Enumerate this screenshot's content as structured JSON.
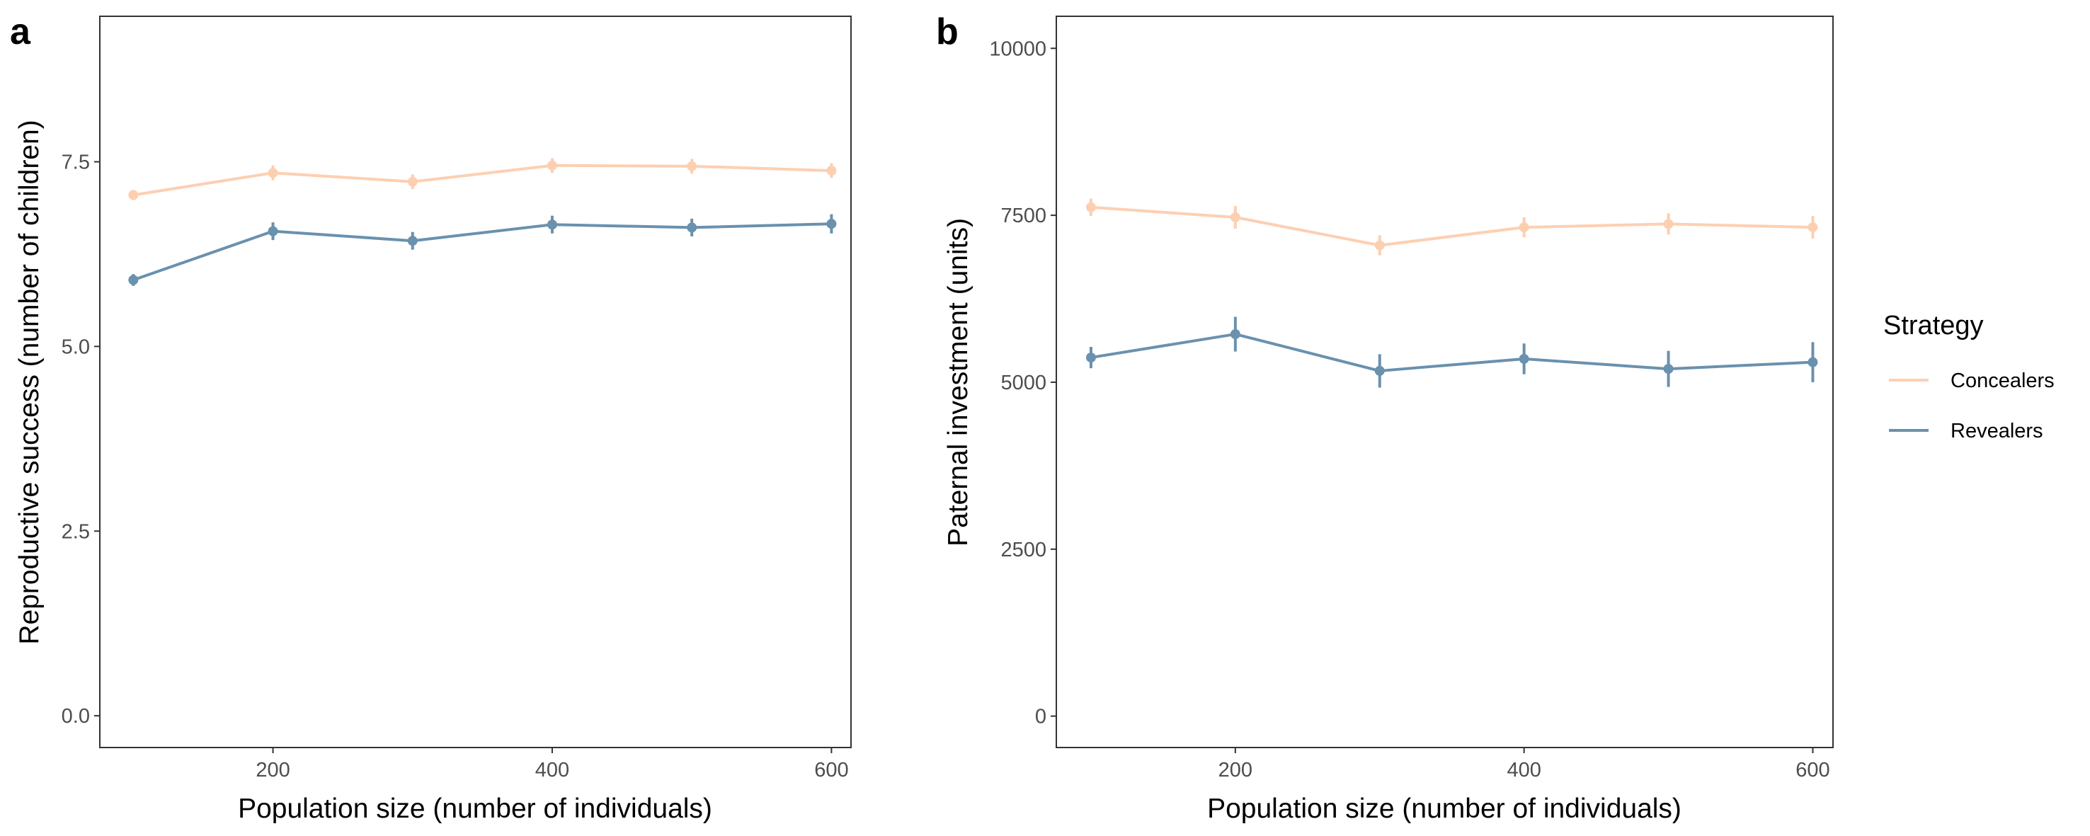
{
  "figure": {
    "legend": {
      "title": "Strategy",
      "items": [
        {
          "label": "Concealers",
          "color": "#FDCFB1"
        },
        {
          "label": "Revealers",
          "color": "#6A91AE"
        }
      ]
    }
  },
  "chart_data": [
    {
      "panel": "a",
      "type": "line",
      "xlabel": "Population size (number of individuals)",
      "ylabel": "Reproductive success (number of children)",
      "xlim": [
        76,
        614
      ],
      "ylim": [
        -0.43,
        9.47
      ],
      "x_ticks": [
        200,
        400,
        600
      ],
      "y_ticks": [
        0.0,
        2.5,
        5.0,
        7.5
      ],
      "y_tick_labels": [
        "0.0",
        "2.5",
        "5.0",
        "7.5"
      ],
      "x": [
        100,
        200,
        300,
        400,
        500,
        600
      ],
      "series": [
        {
          "name": "Concealers",
          "color": "#FDCFB1",
          "values": [
            7.05,
            7.35,
            7.23,
            7.45,
            7.44,
            7.38
          ],
          "errors": [
            0.07,
            0.1,
            0.1,
            0.1,
            0.1,
            0.1
          ]
        },
        {
          "name": "Revealers",
          "color": "#6A91AE",
          "values": [
            5.9,
            6.56,
            6.43,
            6.65,
            6.61,
            6.66
          ],
          "errors": [
            0.08,
            0.12,
            0.12,
            0.12,
            0.12,
            0.13
          ]
        }
      ],
      "legend": "none",
      "grid": false
    },
    {
      "panel": "b",
      "type": "line",
      "xlabel": "Population size (number of individuals)",
      "ylabel": "Paternal investment (units)",
      "xlim": [
        76,
        614
      ],
      "ylim": [
        -470,
        10480
      ],
      "x_ticks": [
        200,
        400,
        600
      ],
      "y_ticks": [
        0,
        2500,
        5000,
        7500,
        10000
      ],
      "y_tick_labels": [
        "0",
        "2500",
        "5000",
        "7500",
        "10000"
      ],
      "x": [
        100,
        200,
        300,
        400,
        500,
        600
      ],
      "series": [
        {
          "name": "Concealers",
          "color": "#FDCFB1",
          "values": [
            7620,
            7470,
            7050,
            7320,
            7370,
            7320
          ],
          "errors": [
            130,
            170,
            150,
            150,
            160,
            170
          ]
        },
        {
          "name": "Revealers",
          "color": "#6A91AE",
          "values": [
            5370,
            5720,
            5170,
            5350,
            5200,
            5300
          ],
          "errors": [
            160,
            260,
            250,
            230,
            270,
            300
          ]
        }
      ],
      "legend": "right",
      "grid": false
    }
  ]
}
